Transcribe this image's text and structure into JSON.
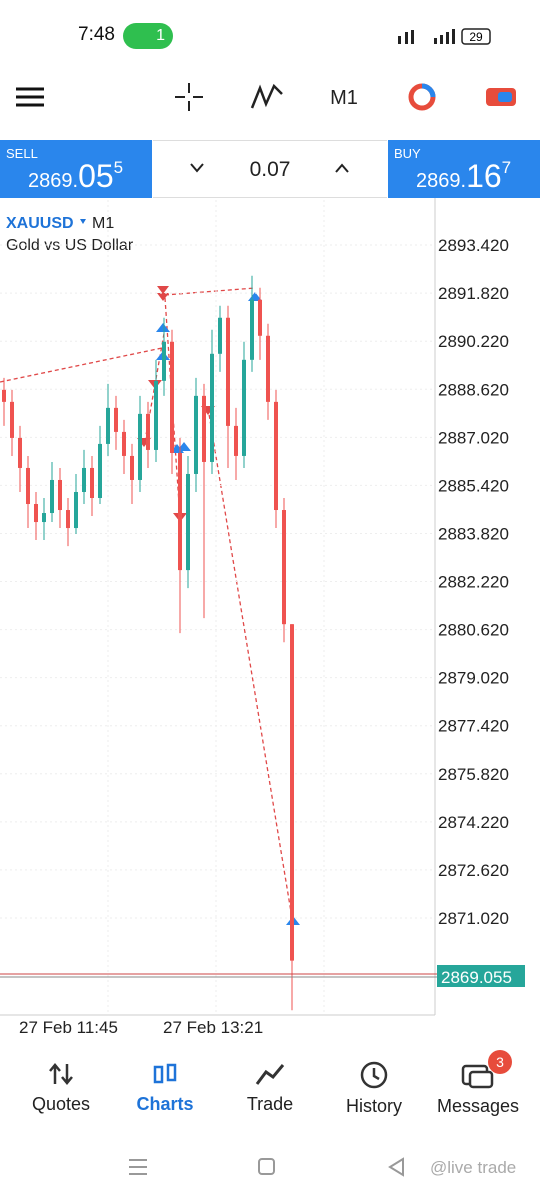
{
  "status_bar": {
    "time": "7:48",
    "hotspot_count": "1",
    "battery": "29"
  },
  "toolbar": {
    "timeframe": "M1"
  },
  "trade_panel": {
    "sell_label": "SELL",
    "sell_price_main": "2869.",
    "sell_price_big": "05",
    "sell_price_sup": "5",
    "volume": "0.07",
    "buy_label": "BUY",
    "buy_price_main": "2869.",
    "buy_price_big": "16",
    "buy_price_sup": "7"
  },
  "chart_data": {
    "type": "candlestick",
    "symbol": "XAUUSD",
    "timeframe": "M1",
    "description": "Gold vs US Dollar",
    "x_labels": [
      "27 Feb 11:45",
      "27 Feb 13:21"
    ],
    "ylim": [
      2867.79,
      2894.92
    ],
    "yticks": [
      {
        "value": 2893.42,
        "label": "2893.420"
      },
      {
        "value": 2891.82,
        "label": "2891.820"
      },
      {
        "value": 2890.22,
        "label": "2890.220"
      },
      {
        "value": 2888.62,
        "label": "2888.620"
      },
      {
        "value": 2887.02,
        "label": "2887.020"
      },
      {
        "value": 2885.42,
        "label": "2885.420"
      },
      {
        "value": 2883.82,
        "label": "2883.820"
      },
      {
        "value": 2882.22,
        "label": "2882.220"
      },
      {
        "value": 2880.62,
        "label": "2880.620"
      },
      {
        "value": 2879.02,
        "label": "2879.020"
      },
      {
        "value": 2877.42,
        "label": "2877.420"
      },
      {
        "value": 2875.82,
        "label": "2875.820"
      },
      {
        "value": 2874.22,
        "label": "2874.220"
      },
      {
        "value": 2872.62,
        "label": "2872.620"
      },
      {
        "value": 2871.02,
        "label": "2871.020"
      }
    ],
    "current_price": {
      "value": 2869.055,
      "label": "2869.055"
    },
    "up_color": "#26a69a",
    "down_color": "#ef5350",
    "open": [
      2888.6,
      2888.2,
      2887.0,
      2886.0,
      2884.8,
      2884.2,
      2884.5,
      2885.6,
      2884.6,
      2884.0,
      2885.2,
      2886.0,
      2885.0,
      2886.8,
      2888.0,
      2887.2,
      2886.4,
      2885.6,
      2887.8,
      2886.6,
      2888.9,
      2890.2,
      2886.5,
      2882.6,
      2885.8,
      2888.4,
      2886.2,
      2889.8,
      2891.0,
      2887.4,
      2886.4,
      2889.6,
      2891.6,
      2890.4,
      2888.2,
      2884.6,
      2880.8
    ],
    "high": [
      2889.0,
      2888.6,
      2887.4,
      2886.4,
      2885.2,
      2885.0,
      2886.2,
      2886.0,
      2885.0,
      2885.8,
      2886.6,
      2886.4,
      2887.4,
      2888.8,
      2888.4,
      2887.6,
      2886.8,
      2888.4,
      2888.2,
      2889.6,
      2891.0,
      2890.6,
      2887.0,
      2886.4,
      2889.0,
      2888.8,
      2890.6,
      2891.4,
      2891.4,
      2888.0,
      2890.2,
      2892.4,
      2892.0,
      2890.8,
      2888.6,
      2885.0,
      2880.8
    ],
    "low": [
      2887.4,
      2886.4,
      2885.2,
      2884.0,
      2883.6,
      2883.6,
      2884.2,
      2884.0,
      2883.4,
      2883.8,
      2884.8,
      2884.4,
      2884.8,
      2886.4,
      2886.6,
      2885.8,
      2884.8,
      2885.2,
      2886.0,
      2886.2,
      2888.4,
      2885.8,
      2880.5,
      2882.0,
      2885.2,
      2881.0,
      2885.8,
      2889.2,
      2886.0,
      2885.6,
      2886.0,
      2889.2,
      2889.6,
      2887.6,
      2884.0,
      2880.2,
      2867.95
    ],
    "close": [
      2888.2,
      2887.0,
      2886.0,
      2884.8,
      2884.2,
      2884.5,
      2885.6,
      2884.6,
      2884.0,
      2885.2,
      2886.0,
      2885.0,
      2886.8,
      2888.0,
      2887.2,
      2886.4,
      2885.6,
      2887.8,
      2886.6,
      2888.9,
      2890.2,
      2886.5,
      2882.6,
      2885.8,
      2888.4,
      2886.2,
      2889.8,
      2891.0,
      2887.4,
      2886.4,
      2889.6,
      2891.6,
      2890.4,
      2888.2,
      2884.6,
      2880.8,
      2869.6
    ]
  },
  "bottom_nav": {
    "items": [
      "Quotes",
      "Charts",
      "Trade",
      "History",
      "Messages"
    ],
    "messages_badge": "3"
  },
  "watermark": "@live trade"
}
